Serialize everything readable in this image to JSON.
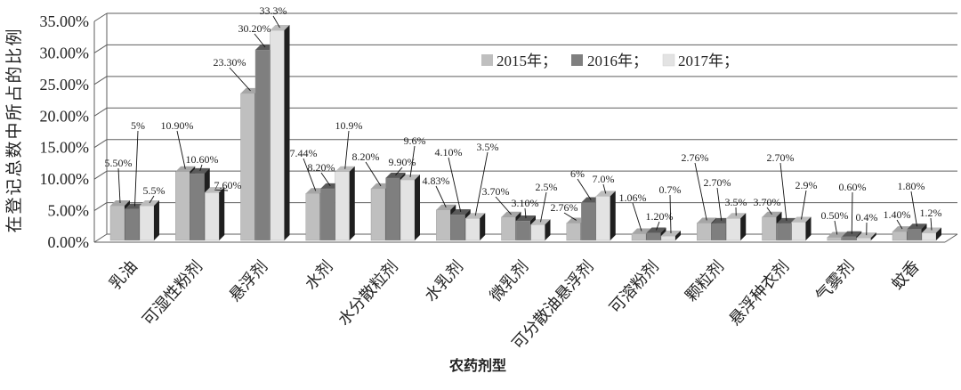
{
  "chart_data": {
    "type": "bar",
    "three_d": true,
    "categories": [
      "乳油",
      "可湿性粉剂",
      "悬浮剂",
      "水剂",
      "水分散粒剂",
      "水乳剂",
      "微乳剂",
      "可分散油悬浮剂",
      "可溶粉剂",
      "颗粒剂",
      "悬浮种衣剂",
      "气雾剂",
      "蚊香"
    ],
    "series": [
      {
        "name": "2015年；",
        "values": [
          5.5,
          10.9,
          23.3,
          7.44,
          8.2,
          4.83,
          3.7,
          2.76,
          1.06,
          2.76,
          3.7,
          0.5,
          1.4
        ],
        "data_labels": [
          "5.50%",
          "10.90%",
          "23.30%",
          "7.44%",
          "8.20%",
          "4.83%",
          "3.70%",
          "2.76%",
          "1.06%",
          "2.76%",
          "3.70%",
          "0.50%",
          "1.40%"
        ]
      },
      {
        "name": "2016年；",
        "values": [
          5,
          10.6,
          30.2,
          8.2,
          9.9,
          4.1,
          3.1,
          6,
          1.2,
          2.7,
          2.7,
          0.6,
          1.8
        ],
        "data_labels": [
          "5%",
          "10.60%",
          "30.20%",
          "8.20%",
          "9.90%",
          "4.10%",
          "3.10%",
          "6%",
          "1.20%",
          "2.70%",
          "2.70%",
          "0.60%",
          "1.80%"
        ]
      },
      {
        "name": "2017年；",
        "values": [
          5.5,
          7.6,
          33.3,
          10.9,
          9.6,
          3.5,
          2.5,
          7.0,
          0.7,
          3.5,
          2.9,
          0.4,
          1.2
        ],
        "data_labels": [
          "5.5%",
          "7.60%",
          "33.3%",
          "10.9%",
          "9.6%",
          "3.5%",
          "2.5%",
          "7.0%",
          "0.7%",
          "3.5%",
          "2.9%",
          "0.4%",
          "1.2%"
        ]
      }
    ],
    "xlabel": "农药剂型",
    "ylabel": "在登记总数中所占的比例",
    "yticks": [
      "0.00%",
      "5.00%",
      "10.00%",
      "15.00%",
      "20.00%",
      "25.00%",
      "30.00%",
      "35.00%"
    ],
    "ylim": [
      0,
      35
    ],
    "grid": true,
    "legend_position": "top-right",
    "colors": {
      "series": [
        "#bfbfbf",
        "#7f7f7f",
        "#e3e3e3"
      ],
      "side": "#1f1f1f",
      "grid": "#5e5e5e"
    }
  }
}
